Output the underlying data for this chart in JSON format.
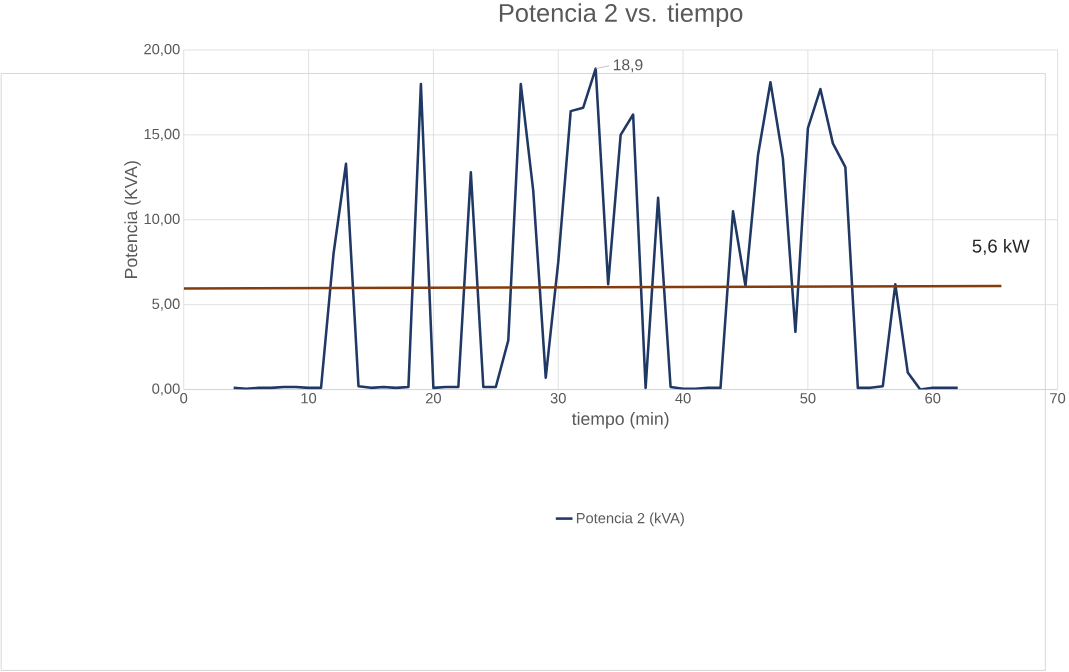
{
  "chart_data": {
    "type": "line",
    "title": "Potencia 2 vs. tiempo",
    "xlabel": "tiempo (min)",
    "ylabel": "Potencia (KVA)",
    "x": [
      4,
      5,
      6,
      7,
      8,
      9,
      10,
      11,
      12,
      13,
      14,
      15,
      16,
      17,
      18,
      19,
      20,
      21,
      22,
      23,
      24,
      25,
      26,
      27,
      28,
      29,
      30,
      31,
      32,
      33,
      34,
      35,
      36,
      37,
      38,
      39,
      40,
      41,
      42,
      43,
      44,
      45,
      46,
      47,
      48,
      49,
      50,
      51,
      52,
      53,
      54,
      55,
      56,
      57,
      58,
      59,
      60,
      61,
      62
    ],
    "series": [
      {
        "name": "Potencia 2 (kVA)",
        "color": "#1f3864",
        "values": [
          0.1,
          0.05,
          0.1,
          0.1,
          0.15,
          0.15,
          0.1,
          0.1,
          8.0,
          13.3,
          0.2,
          0.1,
          0.15,
          0.1,
          0.15,
          18.0,
          0.1,
          0.15,
          0.15,
          12.8,
          0.15,
          0.15,
          2.9,
          18.0,
          11.7,
          0.7,
          7.5,
          16.4,
          16.6,
          18.9,
          6.2,
          15.0,
          16.2,
          0.1,
          11.3,
          0.15,
          0.05,
          0.05,
          0.1,
          0.1,
          10.5,
          6.1,
          13.8,
          18.1,
          13.6,
          3.4,
          15.4,
          17.7,
          14.5,
          13.1,
          0.1,
          0.1,
          0.2,
          6.2,
          1.0,
          0.0,
          0.1,
          0.1,
          0.1
        ]
      },
      {
        "type": "line",
        "color": "#843c0c",
        "x": [
          0,
          65.5
        ],
        "values": [
          5.95,
          6.1
        ]
      }
    ],
    "annotations": [
      {
        "text": "18,9",
        "x": 33,
        "y": 18.9
      },
      "5,6 kW"
    ],
    "xlim": [
      0,
      70
    ],
    "xticks": [
      0,
      10,
      20,
      30,
      40,
      50,
      60,
      70
    ],
    "ylim": [
      0,
      20
    ],
    "yticks": [
      {
        "value": 0,
        "label": "0,00"
      },
      {
        "value": 5,
        "label": "5,00"
      },
      {
        "value": 10,
        "label": "10,00"
      },
      {
        "value": 15,
        "label": "15,00"
      },
      {
        "value": 20,
        "label": "20,00"
      }
    ],
    "grid": true,
    "legend": "bottom",
    "marker": "none",
    "line_style": "solid"
  }
}
